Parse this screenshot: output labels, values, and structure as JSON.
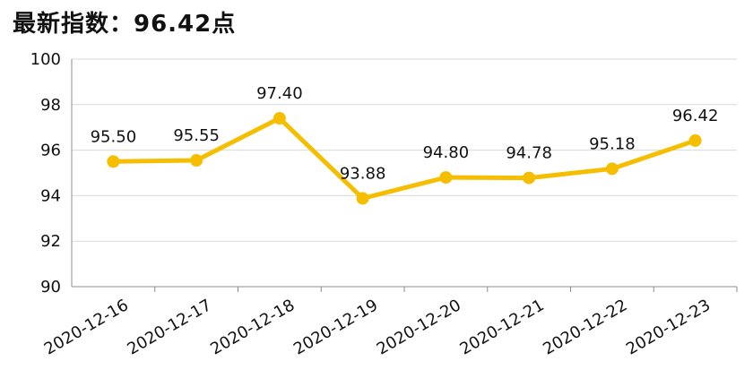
{
  "chart_data": {
    "type": "line",
    "title": "最新指数：96.42点",
    "categories": [
      "2020-12-16",
      "2020-12-17",
      "2020-12-18",
      "2020-12-19",
      "2020-12-20",
      "2020-12-21",
      "2020-12-22",
      "2020-12-23"
    ],
    "series": [
      {
        "values": [
          95.5,
          95.55,
          97.4,
          93.88,
          94.8,
          94.78,
          95.18,
          96.42
        ]
      }
    ],
    "data_labels": [
      "95.50",
      "95.55",
      "97.40",
      "93.88",
      "94.80",
      "94.78",
      "95.18",
      "96.42"
    ],
    "ylim": [
      90,
      100
    ],
    "yticks": [
      "90",
      "92",
      "94",
      "96",
      "98",
      "100"
    ],
    "grid": true,
    "colors": {
      "line": "#F5BE00",
      "grid": "#D9D9D9",
      "axis": "#8C8C8C"
    }
  }
}
